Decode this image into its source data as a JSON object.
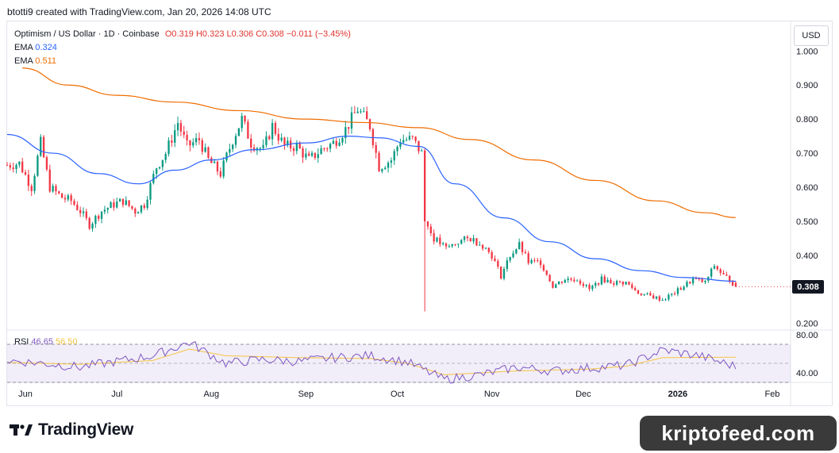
{
  "header": {
    "text": "btotti9 created with TradingView.com, Jan 20, 2026 14:08 UTC"
  },
  "legend": {
    "symbol": "Optimism / US Dollar · 1D · Coinbase",
    "ohlc": "O0.319  H0.323  L0.306  C0.308  −0.011 (−3.45%)",
    "ema_fast_label": "EMA",
    "ema_fast_value": "0.324",
    "ema_slow_label": "EMA",
    "ema_slow_value": "0.511"
  },
  "currency_button": "USD",
  "last_price": "0.308",
  "rsi": {
    "label": "RSI",
    "value": "46.65",
    "ma_value": "56.50"
  },
  "brand": "TradingView",
  "watermark": "kriptofeed.com",
  "colors": {
    "up": "#089981",
    "down": "#f23645",
    "ema_fast": "#2962ff",
    "ema_slow": "#ef6c00",
    "rsi": "#7e57c2",
    "rsi_ma": "#f5c342"
  },
  "chart_data": [
    {
      "type": "line",
      "subtype": "candlestick",
      "x_tick_labels": [
        "Jun",
        "Jul",
        "Aug",
        "Sep",
        "Oct",
        "Nov",
        "Dec",
        "2026",
        "Feb"
      ],
      "y_tick_labels": [
        "1.000",
        "0.900",
        "0.800",
        "0.700",
        "0.600",
        "0.500",
        "0.400",
        "0.200"
      ],
      "ylim": [
        0.19,
        1.01
      ],
      "grid": false,
      "x_start": "2025-05-26",
      "x_end": "2026-02-07",
      "last_date": "2026-01-20",
      "price_path": [
        [
          "2025-05-26",
          0.665
        ],
        [
          "2025-05-30",
          0.67
        ],
        [
          "2025-06-03",
          0.6
        ],
        [
          "2025-06-06",
          0.73
        ],
        [
          "2025-06-09",
          0.6
        ],
        [
          "2025-06-13",
          0.57
        ],
        [
          "2025-06-16",
          0.56
        ],
        [
          "2025-06-19",
          0.53
        ],
        [
          "2025-06-22",
          0.49
        ],
        [
          "2025-06-26",
          0.53
        ],
        [
          "2025-06-30",
          0.55
        ],
        [
          "2025-07-03",
          0.56
        ],
        [
          "2025-07-07",
          0.53
        ],
        [
          "2025-07-10",
          0.55
        ],
        [
          "2025-07-14",
          0.66
        ],
        [
          "2025-07-17",
          0.7
        ],
        [
          "2025-07-21",
          0.79
        ],
        [
          "2025-07-24",
          0.72
        ],
        [
          "2025-07-28",
          0.74
        ],
        [
          "2025-07-31",
          0.68
        ],
        [
          "2025-08-04",
          0.64
        ],
        [
          "2025-08-08",
          0.74
        ],
        [
          "2025-08-11",
          0.8
        ],
        [
          "2025-08-14",
          0.73
        ],
        [
          "2025-08-18",
          0.71
        ],
        [
          "2025-08-21",
          0.78
        ],
        [
          "2025-08-25",
          0.72
        ],
        [
          "2025-08-29",
          0.72
        ],
        [
          "2025-09-02",
          0.68
        ],
        [
          "2025-09-06",
          0.71
        ],
        [
          "2025-09-10",
          0.73
        ],
        [
          "2025-09-14",
          0.77
        ],
        [
          "2025-09-18",
          0.83
        ],
        [
          "2025-09-22",
          0.78
        ],
        [
          "2025-09-25",
          0.66
        ],
        [
          "2025-09-29",
          0.68
        ],
        [
          "2025-10-02",
          0.74
        ],
        [
          "2025-10-06",
          0.74
        ],
        [
          "2025-10-09",
          0.7
        ],
        [
          "2025-10-10",
          0.5
        ],
        [
          "2025-10-13",
          0.45
        ],
        [
          "2025-10-17",
          0.42
        ],
        [
          "2025-10-21",
          0.44
        ],
        [
          "2025-10-25",
          0.45
        ],
        [
          "2025-10-29",
          0.43
        ],
        [
          "2025-11-01",
          0.4
        ],
        [
          "2025-11-04",
          0.34
        ],
        [
          "2025-11-07",
          0.4
        ],
        [
          "2025-11-10",
          0.43
        ],
        [
          "2025-11-13",
          0.38
        ],
        [
          "2025-11-17",
          0.38
        ],
        [
          "2025-11-21",
          0.31
        ],
        [
          "2025-11-25",
          0.33
        ],
        [
          "2025-11-29",
          0.33
        ],
        [
          "2025-12-03",
          0.3
        ],
        [
          "2025-12-07",
          0.33
        ],
        [
          "2025-12-11",
          0.32
        ],
        [
          "2025-12-15",
          0.32
        ],
        [
          "2025-12-19",
          0.29
        ],
        [
          "2025-12-23",
          0.28
        ],
        [
          "2025-12-27",
          0.27
        ],
        [
          "2025-12-31",
          0.29
        ],
        [
          "2026-01-03",
          0.31
        ],
        [
          "2026-01-06",
          0.33
        ],
        [
          "2026-01-10",
          0.32
        ],
        [
          "2026-01-13",
          0.37
        ],
        [
          "2026-01-16",
          0.34
        ],
        [
          "2026-01-18",
          0.33
        ],
        [
          "2026-01-20",
          0.308
        ]
      ],
      "spike_lows": [
        [
          "2025-10-10",
          0.235
        ]
      ],
      "ema_fast": [
        [
          "2025-05-26",
          0.755
        ],
        [
          "2025-06-10",
          0.7
        ],
        [
          "2025-06-25",
          0.64
        ],
        [
          "2025-07-08",
          0.61
        ],
        [
          "2025-07-20",
          0.65
        ],
        [
          "2025-08-01",
          0.68
        ],
        [
          "2025-08-15",
          0.71
        ],
        [
          "2025-09-01",
          0.73
        ],
        [
          "2025-09-15",
          0.75
        ],
        [
          "2025-09-25",
          0.745
        ],
        [
          "2025-10-08",
          0.72
        ],
        [
          "2025-10-20",
          0.61
        ],
        [
          "2025-11-05",
          0.51
        ],
        [
          "2025-11-20",
          0.44
        ],
        [
          "2025-12-05",
          0.39
        ],
        [
          "2025-12-20",
          0.355
        ],
        [
          "2026-01-03",
          0.335
        ],
        [
          "2026-01-20",
          0.324
        ]
      ],
      "ema_slow": [
        [
          "2025-05-31",
          0.95
        ],
        [
          "2025-06-15",
          0.9
        ],
        [
          "2025-07-01",
          0.87
        ],
        [
          "2025-07-20",
          0.85
        ],
        [
          "2025-08-10",
          0.825
        ],
        [
          "2025-09-01",
          0.8
        ],
        [
          "2025-09-20",
          0.79
        ],
        [
          "2025-10-08",
          0.775
        ],
        [
          "2025-10-25",
          0.74
        ],
        [
          "2025-11-15",
          0.68
        ],
        [
          "2025-12-05",
          0.62
        ],
        [
          "2025-12-25",
          0.56
        ],
        [
          "2026-01-10",
          0.525
        ],
        [
          "2026-01-20",
          0.511
        ]
      ]
    },
    {
      "type": "line",
      "subtype": "rsi",
      "y_tick_labels": [
        "80.00",
        "40.00"
      ],
      "ylim": [
        30,
        85
      ],
      "bands": [
        70,
        50,
        30
      ],
      "series": [
        {
          "name": "RSI",
          "values": [
            [
              0.0,
              53
            ],
            [
              0.05,
              50
            ],
            [
              0.1,
              46
            ],
            [
              0.15,
              52
            ],
            [
              0.2,
              58
            ],
            [
              0.25,
              72
            ],
            [
              0.3,
              50
            ],
            [
              0.35,
              54
            ],
            [
              0.4,
              52
            ],
            [
              0.45,
              56
            ],
            [
              0.5,
              58
            ],
            [
              0.55,
              51
            ],
            [
              0.6,
              33
            ],
            [
              0.65,
              38
            ],
            [
              0.7,
              46
            ],
            [
              0.75,
              42
            ],
            [
              0.8,
              45
            ],
            [
              0.85,
              48
            ],
            [
              0.9,
              64
            ],
            [
              0.95,
              58
            ],
            [
              1.0,
              46.65
            ]
          ]
        },
        {
          "name": "RSI-based MA",
          "values": [
            [
              0.0,
              51
            ],
            [
              0.1,
              49
            ],
            [
              0.2,
              53
            ],
            [
              0.25,
              65
            ],
            [
              0.3,
              58
            ],
            [
              0.4,
              56
            ],
            [
              0.5,
              55
            ],
            [
              0.55,
              50
            ],
            [
              0.6,
              38
            ],
            [
              0.7,
              42
            ],
            [
              0.8,
              44
            ],
            [
              0.85,
              47
            ],
            [
              0.9,
              56
            ],
            [
              1.0,
              56.5
            ]
          ]
        }
      ]
    }
  ]
}
